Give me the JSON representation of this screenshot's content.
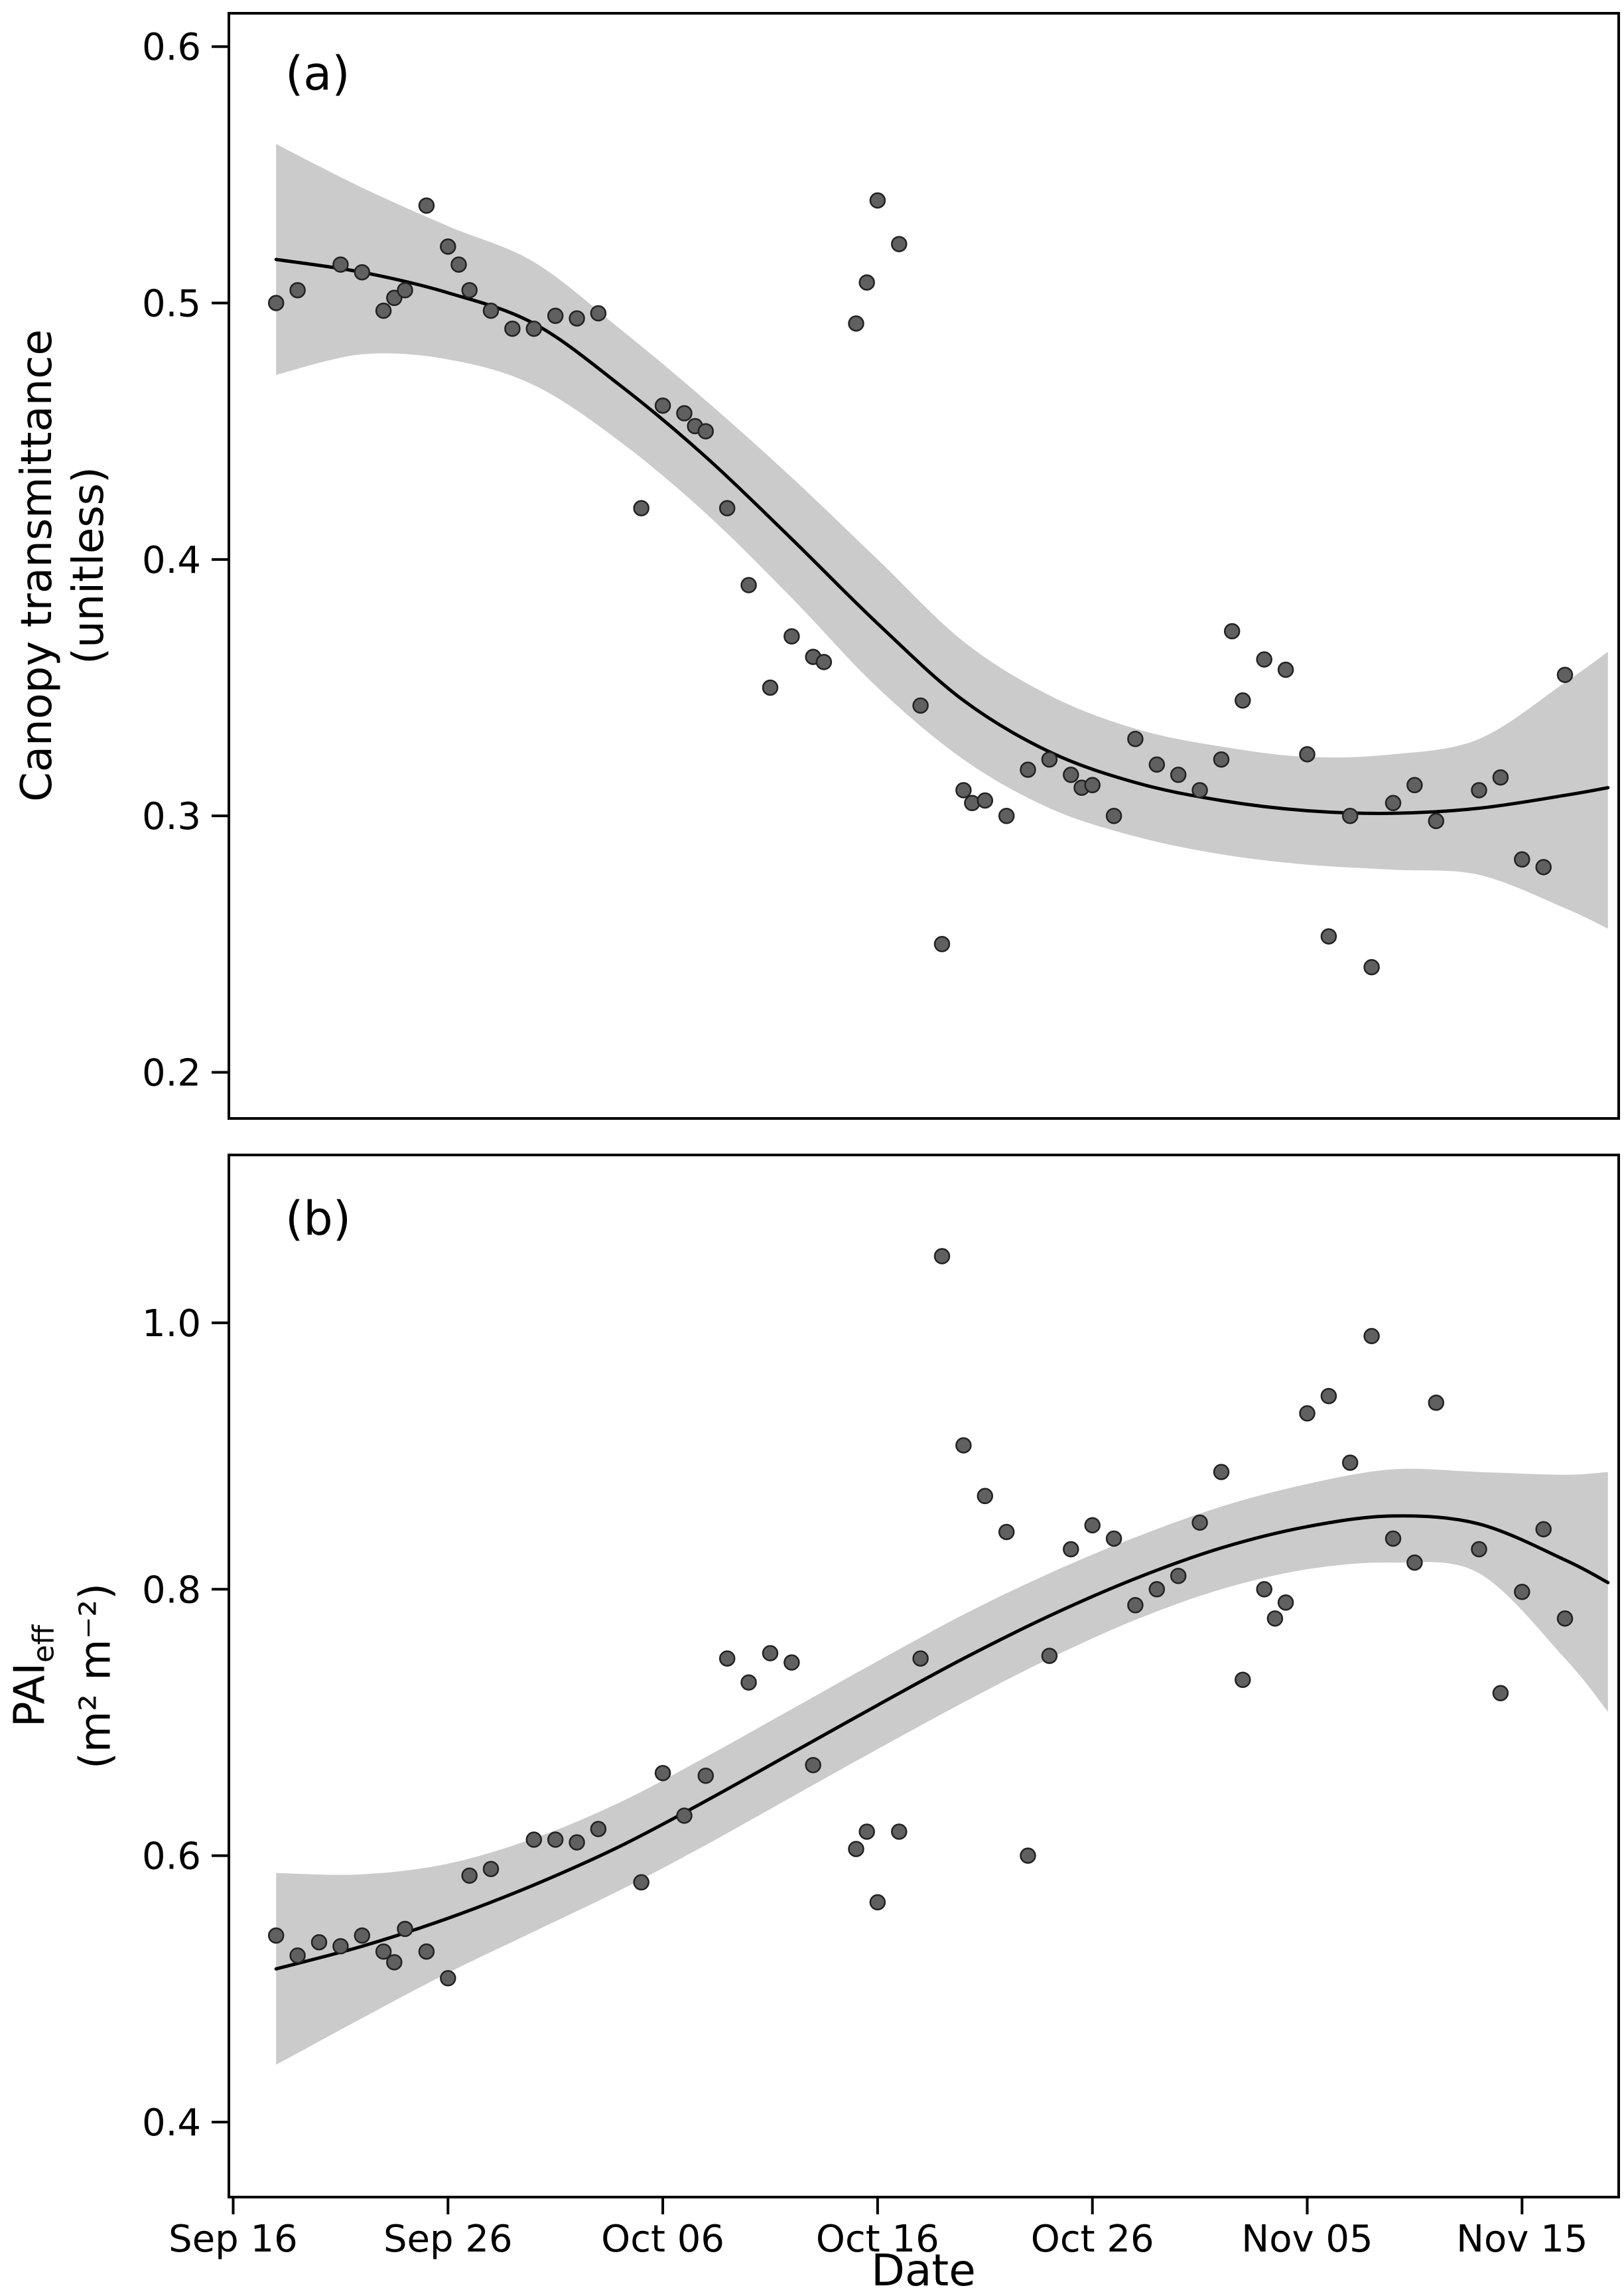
{
  "figure": {
    "background": "#ffffff",
    "x_axis": {
      "title": "Date",
      "tick_labels": [
        "Sep 16",
        "Sep 26",
        "Oct 06",
        "Oct 16",
        "Oct 26",
        "Nov 05",
        "Nov 15"
      ],
      "tick_days": [
        0,
        10,
        20,
        30,
        40,
        50,
        60
      ]
    },
    "colors": {
      "point_fill": "#606060",
      "point_stroke": "#222222",
      "line": "#000000",
      "band": "#cbcbcb",
      "axis": "#000000",
      "text": "#000000"
    }
  },
  "chart_data": [
    {
      "type": "scatter",
      "panel_key": "a",
      "panel_label": "(a)",
      "title": "",
      "xlabel": "Date",
      "ylabel": "Canopy transmittance (unitless)",
      "ylabel_lines": [
        "Canopy transmittance",
        "(unitless)"
      ],
      "x_unit": "days since Sep 16",
      "xlim": [
        -0.2,
        64.5
      ],
      "ylim": [
        0.182,
        0.613
      ],
      "yticks": [
        0.2,
        0.3,
        0.4,
        0.5,
        0.6
      ],
      "ytick_labels": [
        "0.2",
        "0.3",
        "0.4",
        "0.5",
        "0.6"
      ],
      "grid": false,
      "legend": "none",
      "points": [
        [
          2,
          0.5
        ],
        [
          3,
          0.505
        ],
        [
          5,
          0.515
        ],
        [
          6,
          0.512
        ],
        [
          7,
          0.497
        ],
        [
          7.5,
          0.502
        ],
        [
          8,
          0.505
        ],
        [
          9,
          0.538
        ],
        [
          10,
          0.522
        ],
        [
          10.5,
          0.515
        ],
        [
          11,
          0.505
        ],
        [
          12,
          0.497
        ],
        [
          13,
          0.49
        ],
        [
          14,
          0.49
        ],
        [
          15,
          0.495
        ],
        [
          16,
          0.494
        ],
        [
          17,
          0.496
        ],
        [
          19,
          0.42
        ],
        [
          20,
          0.46
        ],
        [
          21,
          0.457
        ],
        [
          21.5,
          0.452
        ],
        [
          22,
          0.45
        ],
        [
          23,
          0.42
        ],
        [
          24,
          0.39
        ],
        [
          25,
          0.35
        ],
        [
          26,
          0.37
        ],
        [
          27,
          0.362
        ],
        [
          27.5,
          0.36
        ],
        [
          29,
          0.492
        ],
        [
          29.5,
          0.508
        ],
        [
          30,
          0.54
        ],
        [
          31,
          0.523
        ],
        [
          32,
          0.343
        ],
        [
          33,
          0.25
        ],
        [
          34,
          0.31
        ],
        [
          34.4,
          0.305
        ],
        [
          35,
          0.306
        ],
        [
          36,
          0.3
        ],
        [
          37,
          0.318
        ],
        [
          38,
          0.322
        ],
        [
          39,
          0.316
        ],
        [
          39.5,
          0.311
        ],
        [
          40,
          0.312
        ],
        [
          41,
          0.3
        ],
        [
          42,
          0.33
        ],
        [
          43,
          0.32
        ],
        [
          44,
          0.316
        ],
        [
          45,
          0.31
        ],
        [
          46,
          0.322
        ],
        [
          46.5,
          0.372
        ],
        [
          47,
          0.345
        ],
        [
          48,
          0.361
        ],
        [
          49,
          0.357
        ],
        [
          50,
          0.324
        ],
        [
          51,
          0.253
        ],
        [
          52,
          0.3
        ],
        [
          53,
          0.241
        ],
        [
          54,
          0.305
        ],
        [
          55,
          0.312
        ],
        [
          56,
          0.298
        ],
        [
          58,
          0.31
        ],
        [
          59,
          0.315
        ],
        [
          60,
          0.283
        ],
        [
          61,
          0.28
        ],
        [
          62,
          0.355
        ]
      ],
      "smooth": [
        [
          2,
          0.517
        ],
        [
          6,
          0.512
        ],
        [
          10,
          0.504
        ],
        [
          14,
          0.492
        ],
        [
          18,
          0.468
        ],
        [
          22,
          0.44
        ],
        [
          26,
          0.408
        ],
        [
          30,
          0.375
        ],
        [
          34,
          0.345
        ],
        [
          38,
          0.325
        ],
        [
          42,
          0.313
        ],
        [
          46,
          0.306
        ],
        [
          50,
          0.302
        ],
        [
          54,
          0.301
        ],
        [
          58,
          0.303
        ],
        [
          62,
          0.308
        ],
        [
          64,
          0.311
        ]
      ],
      "band": [
        [
          2,
          0.472,
          0.562
        ],
        [
          6,
          0.48,
          0.545
        ],
        [
          10,
          0.478,
          0.53
        ],
        [
          14,
          0.468,
          0.516
        ],
        [
          18,
          0.446,
          0.49
        ],
        [
          22,
          0.418,
          0.462
        ],
        [
          26,
          0.385,
          0.432
        ],
        [
          30,
          0.35,
          0.4
        ],
        [
          34,
          0.322,
          0.368
        ],
        [
          38,
          0.303,
          0.347
        ],
        [
          42,
          0.292,
          0.334
        ],
        [
          46,
          0.285,
          0.327
        ],
        [
          50,
          0.281,
          0.323
        ],
        [
          54,
          0.279,
          0.324
        ],
        [
          58,
          0.277,
          0.33
        ],
        [
          62,
          0.264,
          0.352
        ],
        [
          64,
          0.256,
          0.364
        ]
      ]
    },
    {
      "type": "scatter",
      "panel_key": "b",
      "panel_label": "(b)",
      "title": "",
      "xlabel": "Date",
      "ylabel": "PAIeff (m² m⁻²)",
      "ylabel_main": "PAI",
      "ylabel_sub": "eff",
      "ylabel_units": "(m² m⁻²)",
      "x_unit": "days since Sep 16",
      "xlim": [
        -0.2,
        64.5
      ],
      "ylim": [
        0.3437,
        1.126
      ],
      "yticks": [
        0.4,
        0.6,
        0.8,
        1.0
      ],
      "ytick_labels": [
        "0.4",
        "0.6",
        "0.8",
        "1.0"
      ],
      "grid": false,
      "legend": "none",
      "points": [
        [
          2,
          0.54
        ],
        [
          3,
          0.525
        ],
        [
          4,
          0.535
        ],
        [
          5,
          0.532
        ],
        [
          6,
          0.54
        ],
        [
          7,
          0.528
        ],
        [
          7.5,
          0.52
        ],
        [
          8,
          0.545
        ],
        [
          9,
          0.528
        ],
        [
          10,
          0.508
        ],
        [
          11,
          0.585
        ],
        [
          12,
          0.59
        ],
        [
          14,
          0.612
        ],
        [
          15,
          0.612
        ],
        [
          16,
          0.61
        ],
        [
          17,
          0.62
        ],
        [
          19,
          0.58
        ],
        [
          20,
          0.662
        ],
        [
          21,
          0.63
        ],
        [
          22,
          0.66
        ],
        [
          23,
          0.748
        ],
        [
          24,
          0.73
        ],
        [
          25,
          0.752
        ],
        [
          26,
          0.745
        ],
        [
          27,
          0.668
        ],
        [
          29,
          0.605
        ],
        [
          29.5,
          0.618
        ],
        [
          30,
          0.565
        ],
        [
          31,
          0.618
        ],
        [
          32,
          0.748
        ],
        [
          33,
          1.05
        ],
        [
          34,
          0.908
        ],
        [
          35,
          0.87
        ],
        [
          36,
          0.843
        ],
        [
          37,
          0.6
        ],
        [
          38,
          0.75
        ],
        [
          39,
          0.83
        ],
        [
          40,
          0.848
        ],
        [
          41,
          0.838
        ],
        [
          42,
          0.788
        ],
        [
          43,
          0.8
        ],
        [
          44,
          0.81
        ],
        [
          45,
          0.85
        ],
        [
          46,
          0.888
        ],
        [
          47,
          0.732
        ],
        [
          48,
          0.8
        ],
        [
          48.5,
          0.778
        ],
        [
          49,
          0.79
        ],
        [
          50,
          0.932
        ],
        [
          51,
          0.945
        ],
        [
          52,
          0.895
        ],
        [
          53,
          0.99
        ],
        [
          54,
          0.838
        ],
        [
          55,
          0.82
        ],
        [
          56,
          0.94
        ],
        [
          58,
          0.83
        ],
        [
          59,
          0.722
        ],
        [
          60,
          0.798
        ],
        [
          61,
          0.845
        ],
        [
          62,
          0.778
        ]
      ],
      "smooth": [
        [
          2,
          0.515
        ],
        [
          6,
          0.532
        ],
        [
          10,
          0.553
        ],
        [
          14,
          0.578
        ],
        [
          18,
          0.607
        ],
        [
          22,
          0.641
        ],
        [
          26,
          0.677
        ],
        [
          30,
          0.713
        ],
        [
          34,
          0.748
        ],
        [
          38,
          0.78
        ],
        [
          42,
          0.808
        ],
        [
          46,
          0.831
        ],
        [
          50,
          0.847
        ],
        [
          54,
          0.855
        ],
        [
          58,
          0.849
        ],
        [
          62,
          0.822
        ],
        [
          64,
          0.805
        ]
      ],
      "band": [
        [
          2,
          0.443,
          0.587
        ],
        [
          6,
          0.478,
          0.586
        ],
        [
          10,
          0.512,
          0.594
        ],
        [
          14,
          0.543,
          0.613
        ],
        [
          18,
          0.574,
          0.64
        ],
        [
          22,
          0.608,
          0.674
        ],
        [
          26,
          0.644,
          0.71
        ],
        [
          30,
          0.68,
          0.746
        ],
        [
          34,
          0.715,
          0.781
        ],
        [
          38,
          0.748,
          0.812
        ],
        [
          42,
          0.777,
          0.839
        ],
        [
          46,
          0.8,
          0.862
        ],
        [
          50,
          0.815,
          0.879
        ],
        [
          54,
          0.82,
          0.89
        ],
        [
          58,
          0.812,
          0.888
        ],
        [
          62,
          0.748,
          0.886
        ],
        [
          64,
          0.708,
          0.888
        ]
      ]
    }
  ]
}
